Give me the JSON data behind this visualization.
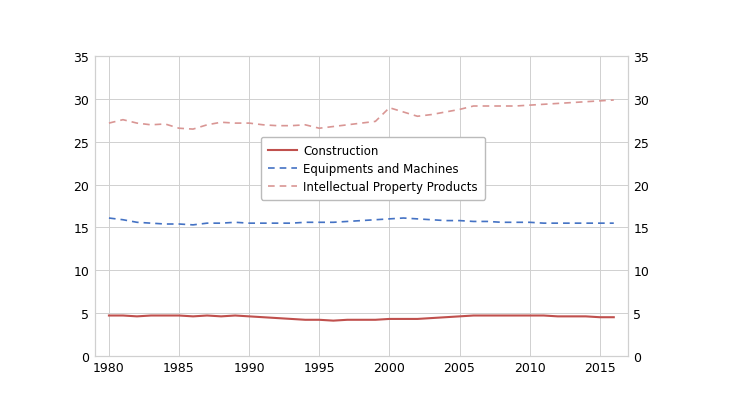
{
  "years": [
    1980,
    1981,
    1982,
    1983,
    1984,
    1985,
    1986,
    1987,
    1988,
    1989,
    1990,
    1991,
    1992,
    1993,
    1994,
    1995,
    1996,
    1997,
    1998,
    1999,
    2000,
    2001,
    2002,
    2003,
    2004,
    2005,
    2006,
    2007,
    2008,
    2009,
    2010,
    2011,
    2012,
    2013,
    2014,
    2015,
    2016
  ],
  "construction": [
    4.7,
    4.7,
    4.6,
    4.7,
    4.7,
    4.7,
    4.6,
    4.7,
    4.6,
    4.7,
    4.6,
    4.5,
    4.4,
    4.3,
    4.2,
    4.2,
    4.1,
    4.2,
    4.2,
    4.2,
    4.3,
    4.3,
    4.3,
    4.4,
    4.5,
    4.6,
    4.7,
    4.7,
    4.7,
    4.7,
    4.7,
    4.7,
    4.6,
    4.6,
    4.6,
    4.5,
    4.5
  ],
  "equipment": [
    16.1,
    15.9,
    15.6,
    15.5,
    15.4,
    15.4,
    15.3,
    15.5,
    15.5,
    15.6,
    15.5,
    15.5,
    15.5,
    15.5,
    15.6,
    15.6,
    15.6,
    15.7,
    15.8,
    15.9,
    16.0,
    16.1,
    16.0,
    15.9,
    15.8,
    15.8,
    15.7,
    15.7,
    15.6,
    15.6,
    15.6,
    15.5,
    15.5,
    15.5,
    15.5,
    15.5,
    15.5
  ],
  "ipp": [
    27.2,
    27.6,
    27.2,
    27.0,
    27.1,
    26.6,
    26.5,
    27.0,
    27.3,
    27.2,
    27.2,
    27.0,
    26.9,
    26.9,
    27.0,
    26.6,
    26.8,
    27.0,
    27.2,
    27.4,
    29.0,
    28.5,
    28.0,
    28.2,
    28.5,
    28.8,
    29.2,
    29.2,
    29.2,
    29.2,
    29.3,
    29.4,
    29.5,
    29.6,
    29.7,
    29.8,
    29.9
  ],
  "construction_color": "#c0504d",
  "equipment_color": "#4472c4",
  "ipp_color": "#d99694",
  "ylim": [
    0,
    35
  ],
  "yticks": [
    0,
    5,
    10,
    15,
    20,
    25,
    30,
    35
  ],
  "xlim": [
    1979,
    2017
  ],
  "xticks": [
    1980,
    1985,
    1990,
    1995,
    2000,
    2005,
    2010,
    2015
  ],
  "legend_labels": [
    "Construction",
    "Equipments and Machines",
    "Intellectual Property Products"
  ],
  "background_color": "#ffffff",
  "grid_color": "#d0d0d0"
}
